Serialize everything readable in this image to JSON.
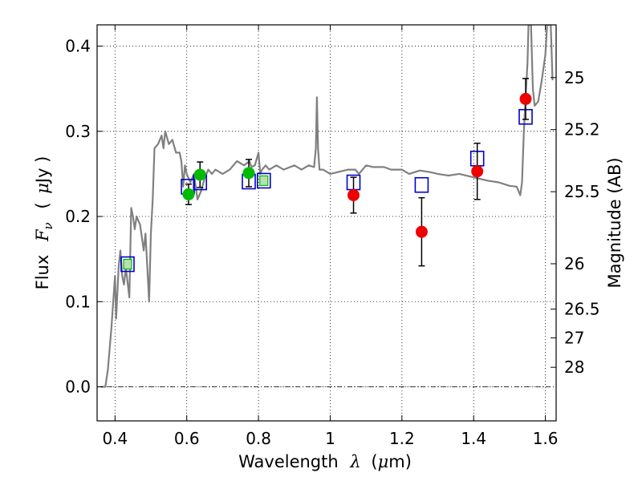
{
  "chart_data": {
    "type": "scatter",
    "title": "",
    "xlabel": "Wavelength",
    "xlabel_symbol": "λ",
    "xlabel_unit_open": "(",
    "xlabel_unit_mu": "μ",
    "xlabel_unit_rest": "m)",
    "ylabel": "Flux",
    "ylabel_symbol": "F",
    "ylabel_subscript": "ν",
    "ylabel_unit_open": "(",
    "ylabel_unit_mu": "μ",
    "ylabel_unit_rest": "Jy )",
    "y2label": "Magnitude (AB)",
    "xlim": [
      0.35,
      1.63
    ],
    "ylim": [
      -0.04,
      0.425
    ],
    "grid": true,
    "x_ticks": [
      0.4,
      0.6,
      0.8,
      1.0,
      1.2,
      1.4,
      1.6
    ],
    "x_tick_labels": [
      "0.4",
      "0.6",
      "0.8",
      "1",
      "1.2",
      "1.4",
      "1.6"
    ],
    "y_ticks": [
      0.0,
      0.1,
      0.2,
      0.3,
      0.4
    ],
    "y_tick_labels": [
      "0.0",
      "0.1",
      "0.2",
      "0.3",
      "0.4"
    ],
    "y2_ticks": [
      {
        "label": "25",
        "flux": 0.3631
      },
      {
        "label": "25.2",
        "flux": 0.302
      },
      {
        "label": "25.5",
        "flux": 0.2291
      },
      {
        "label": "26",
        "flux": 0.1445
      },
      {
        "label": "26.5",
        "flux": 0.0912
      },
      {
        "label": "27",
        "flux": 0.0575
      },
      {
        "label": "28",
        "flux": 0.0229
      }
    ],
    "colors": {
      "model": "#808080",
      "model_photometry": "#0000cc",
      "observed_optical": "#00bb00",
      "observed_nir": "#ee0000",
      "errorbar": "#000000"
    },
    "series": [
      {
        "kind": "line",
        "points": [
          [
            0.36,
            0.0
          ],
          [
            0.373,
            0.0
          ],
          [
            0.38,
            0.02
          ],
          [
            0.39,
            0.07
          ],
          [
            0.395,
            0.1
          ],
          [
            0.4,
            0.13
          ],
          [
            0.403,
            0.08
          ],
          [
            0.41,
            0.14
          ],
          [
            0.415,
            0.16
          ],
          [
            0.42,
            0.13
          ],
          [
            0.425,
            0.12
          ],
          [
            0.43,
            0.14
          ],
          [
            0.44,
            0.105
          ],
          [
            0.445,
            0.21
          ],
          [
            0.45,
            0.2
          ],
          [
            0.455,
            0.185
          ],
          [
            0.46,
            0.2
          ],
          [
            0.47,
            0.19
          ],
          [
            0.48,
            0.16
          ],
          [
            0.485,
            0.18
          ],
          [
            0.49,
            0.14
          ],
          [
            0.495,
            0.1
          ],
          [
            0.5,
            0.18
          ],
          [
            0.505,
            0.22
          ],
          [
            0.51,
            0.28
          ],
          [
            0.52,
            0.285
          ],
          [
            0.53,
            0.295
          ],
          [
            0.535,
            0.28
          ],
          [
            0.54,
            0.3
          ],
          [
            0.55,
            0.285
          ],
          [
            0.56,
            0.29
          ],
          [
            0.57,
            0.275
          ],
          [
            0.58,
            0.275
          ],
          [
            0.585,
            0.265
          ],
          [
            0.59,
            0.235
          ],
          [
            0.595,
            0.26
          ],
          [
            0.6,
            0.25
          ],
          [
            0.61,
            0.24
          ],
          [
            0.62,
            0.25
          ],
          [
            0.63,
            0.22
          ],
          [
            0.64,
            0.23
          ],
          [
            0.65,
            0.245
          ],
          [
            0.66,
            0.255
          ],
          [
            0.67,
            0.25
          ],
          [
            0.68,
            0.255
          ],
          [
            0.7,
            0.25
          ],
          [
            0.72,
            0.255
          ],
          [
            0.74,
            0.265
          ],
          [
            0.76,
            0.26
          ],
          [
            0.775,
            0.265
          ],
          [
            0.78,
            0.258
          ],
          [
            0.79,
            0.26
          ],
          [
            0.8,
            0.275
          ],
          [
            0.805,
            0.25
          ],
          [
            0.81,
            0.255
          ],
          [
            0.82,
            0.26
          ],
          [
            0.83,
            0.255
          ],
          [
            0.85,
            0.26
          ],
          [
            0.87,
            0.255
          ],
          [
            0.9,
            0.26
          ],
          [
            0.92,
            0.255
          ],
          [
            0.94,
            0.26
          ],
          [
            0.955,
            0.258
          ],
          [
            0.96,
            0.28
          ],
          [
            0.963,
            0.34
          ],
          [
            0.966,
            0.28
          ],
          [
            0.97,
            0.255
          ],
          [
            0.98,
            0.255
          ],
          [
            1.0,
            0.25
          ],
          [
            1.02,
            0.252
          ],
          [
            1.05,
            0.255
          ],
          [
            1.07,
            0.255
          ],
          [
            1.08,
            0.25
          ],
          [
            1.1,
            0.26
          ],
          [
            1.12,
            0.258
          ],
          [
            1.15,
            0.258
          ],
          [
            1.17,
            0.255
          ],
          [
            1.2,
            0.255
          ],
          [
            1.22,
            0.25
          ],
          [
            1.25,
            0.254
          ],
          [
            1.28,
            0.252
          ],
          [
            1.3,
            0.25
          ],
          [
            1.33,
            0.248
          ],
          [
            1.36,
            0.25
          ],
          [
            1.4,
            0.246
          ],
          [
            1.44,
            0.242
          ],
          [
            1.47,
            0.24
          ],
          [
            1.5,
            0.236
          ],
          [
            1.52,
            0.235
          ],
          [
            1.53,
            0.225
          ],
          [
            1.535,
            0.24
          ],
          [
            1.54,
            0.3
          ],
          [
            1.545,
            0.34
          ],
          [
            1.55,
            0.38
          ],
          [
            1.553,
            0.425
          ],
          [
            1.56,
            0.425
          ],
          [
            1.565,
            0.35
          ],
          [
            1.57,
            0.33
          ],
          [
            1.58,
            0.335
          ],
          [
            1.59,
            0.36
          ],
          [
            1.6,
            0.39
          ],
          [
            1.605,
            0.425
          ],
          [
            1.615,
            0.425
          ],
          [
            1.62,
            0.36
          ]
        ]
      },
      {
        "kind": "model_photometry",
        "marker": "open-square",
        "points": [
          [
            0.435,
            0.144
          ],
          [
            0.603,
            0.235
          ],
          [
            0.637,
            0.24
          ],
          [
            0.773,
            0.241
          ],
          [
            0.815,
            0.242
          ],
          [
            1.065,
            0.24
          ],
          [
            1.255,
            0.237
          ],
          [
            1.41,
            0.268
          ],
          [
            1.545,
            0.317
          ]
        ]
      },
      {
        "kind": "observed_optical",
        "marker": "filled-circle",
        "points": [
          {
            "x": 0.435,
            "y": 0.144,
            "err": 0.0
          },
          {
            "x": 0.605,
            "y": 0.226,
            "err": 0.012
          },
          {
            "x": 0.637,
            "y": 0.249,
            "err": 0.015
          },
          {
            "x": 0.773,
            "y": 0.251,
            "err": 0.016
          },
          {
            "x": 0.815,
            "y": 0.242,
            "err": 0.0
          }
        ]
      },
      {
        "kind": "observed_nir",
        "marker": "filled-circle",
        "points": [
          {
            "x": 1.065,
            "y": 0.225,
            "err": 0.021
          },
          {
            "x": 1.255,
            "y": 0.182,
            "err": 0.04
          },
          {
            "x": 1.41,
            "y": 0.253,
            "err": 0.033
          },
          {
            "x": 1.545,
            "y": 0.338,
            "err": 0.024
          }
        ]
      }
    ]
  }
}
